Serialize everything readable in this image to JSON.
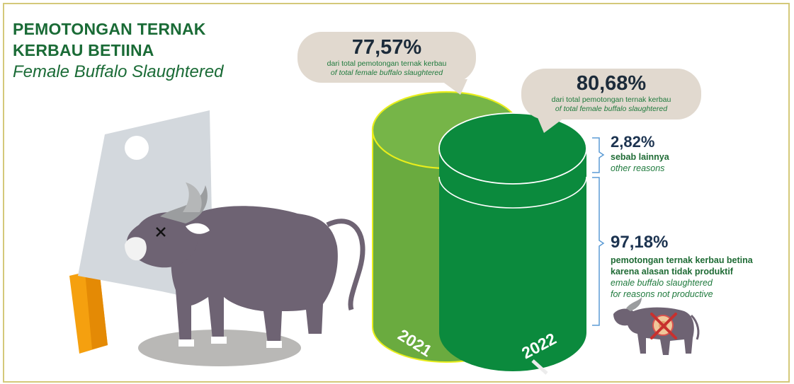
{
  "title": {
    "line1": "PEMOTONGAN TERNAK",
    "line2": "KERBAU BETIINA",
    "line3": "Female Buffalo Slaughtered"
  },
  "chart_data": {
    "type": "bar",
    "categories": [
      "2021",
      "2022"
    ],
    "values": [
      77.57,
      80.68
    ],
    "value_labels": [
      "77,57%",
      "80,68%"
    ],
    "bubble_caption_id": "dari total pemotongan ternak kerbau",
    "bubble_caption_en": "of total female buffalo slaughtered",
    "breakdown_2022": [
      {
        "value": 2.82,
        "label": "2,82%",
        "caption_id": "sebab lainnya",
        "caption_en": "other reasons"
      },
      {
        "value": 97.18,
        "label": "97,18%",
        "caption_id": [
          "pemotongan ternak kerbau betina",
          "karena alasan tidak produktif"
        ],
        "caption_en": [
          "emale buffalo slaughtered",
          "for reasons not productive"
        ]
      }
    ]
  },
  "colors": {
    "title": "#1a6b36",
    "cylinder_2021": "#6aab3f",
    "cylinder_2021_top": "#76b548",
    "cylinder_2021_rim": "#e9ee1c",
    "cylinder_2022": "#0b8a3d",
    "bubble": "#e1d9cf",
    "bracket": "#5b9bd5",
    "buffalo": "#6e6373",
    "frame": "#d4c97a"
  }
}
